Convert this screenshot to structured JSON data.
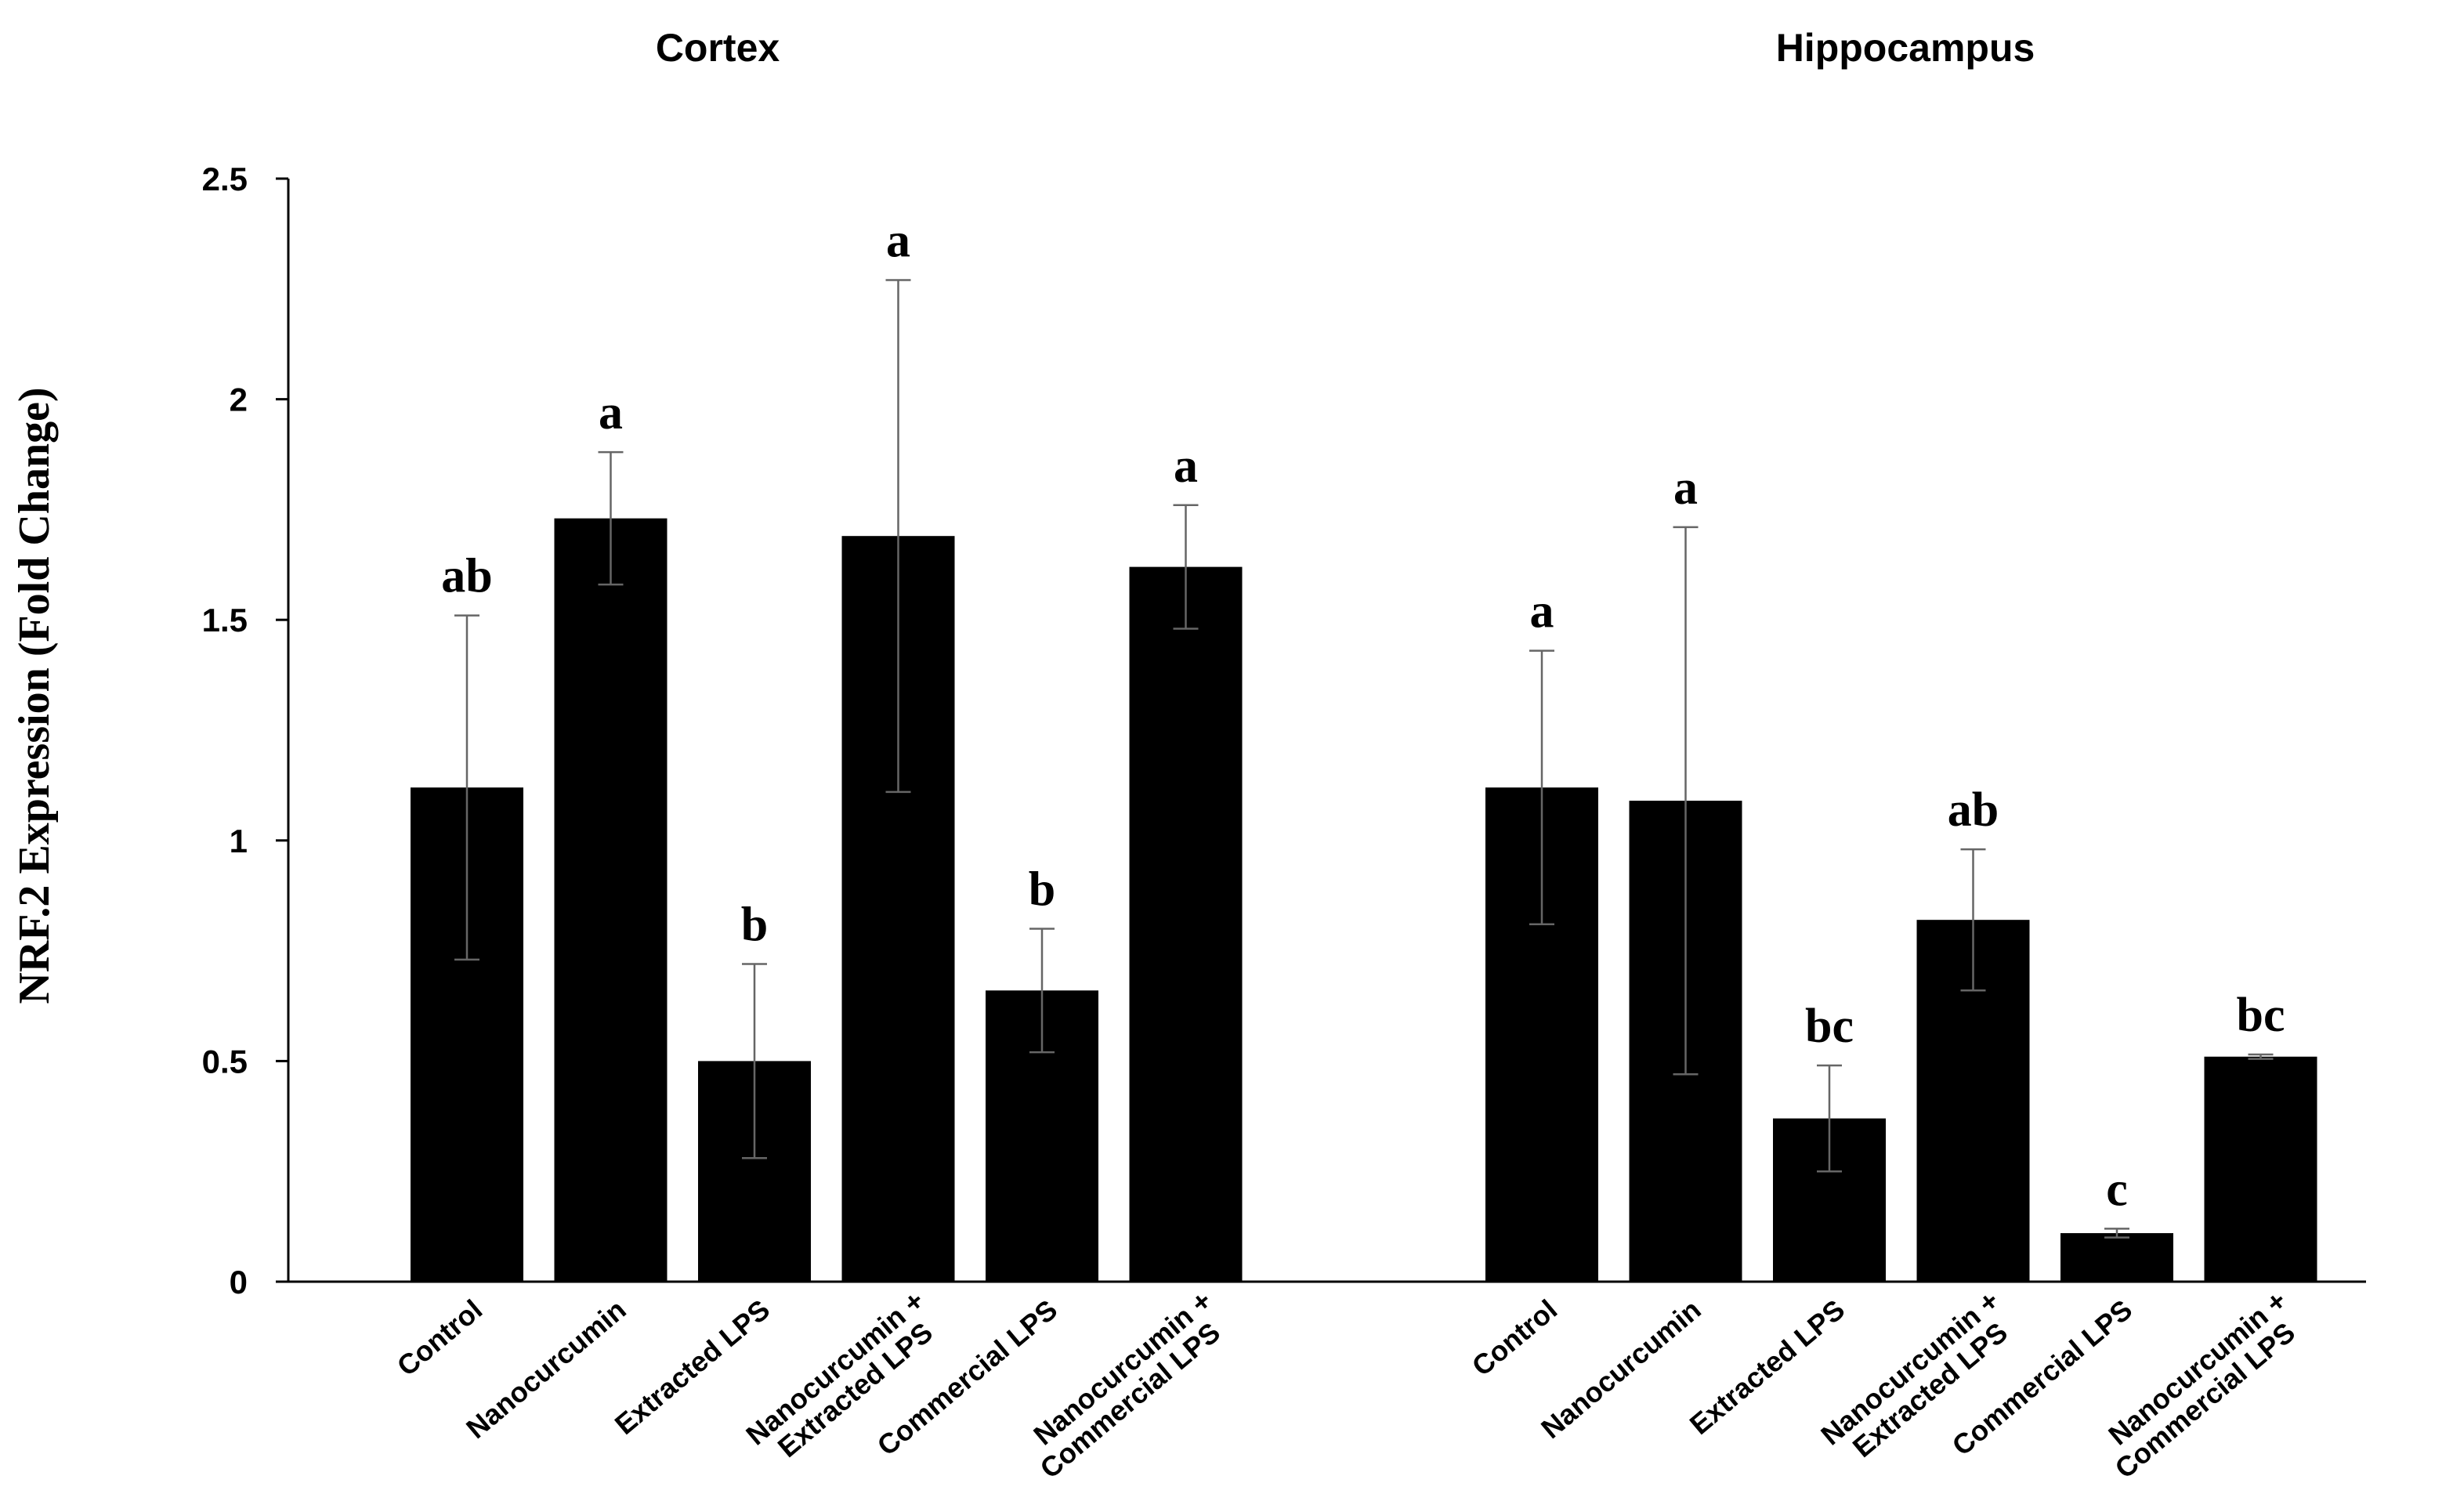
{
  "chart_data": {
    "type": "bar",
    "ylabel": "NRF.2 Expression (Fold Change)",
    "ylim": [
      0,
      2.5
    ],
    "yticks": [
      "0",
      "0.5",
      "1",
      "1.5",
      "2",
      "2.5"
    ],
    "ytick_values": [
      0,
      0.5,
      1,
      1.5,
      2,
      2.5
    ],
    "bar_color": "#000000",
    "groups": [
      {
        "title": "Cortex",
        "categories": [
          [
            "Control"
          ],
          [
            "Nanocurcumin"
          ],
          [
            "Extracted LPS"
          ],
          [
            "Nanocurcumin +",
            "Extracted LPS"
          ],
          [
            "Commercial LPS"
          ],
          [
            "Nanocurcumin +",
            "Commercial LPS"
          ]
        ],
        "values": [
          1.12,
          1.73,
          0.5,
          1.69,
          0.66,
          1.62
        ],
        "errors": [
          0.39,
          0.15,
          0.22,
          0.58,
          0.14,
          0.14
        ],
        "labels": [
          "ab",
          "a",
          "b",
          "a",
          "b",
          "a"
        ]
      },
      {
        "title": "Hippocampus",
        "categories": [
          [
            "Control"
          ],
          [
            "Nanocurcumin"
          ],
          [
            "Extracted LPS"
          ],
          [
            "Nanocurcumin +",
            "Extracted LPS"
          ],
          [
            "Commercial LPS"
          ],
          [
            "Nanocurcumin +",
            "Commercial LPS"
          ]
        ],
        "values": [
          1.12,
          1.09,
          0.37,
          0.82,
          0.11,
          0.51
        ],
        "errors": [
          0.31,
          0.62,
          0.12,
          0.16,
          0.01,
          0.005
        ],
        "labels": [
          "a",
          "a",
          "bc",
          "ab",
          "c",
          "bc"
        ]
      }
    ]
  }
}
